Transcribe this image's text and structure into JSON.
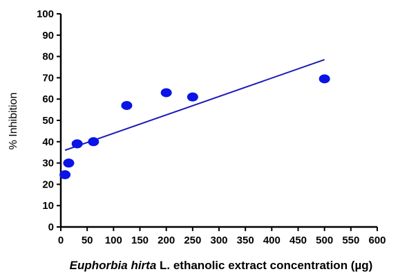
{
  "chart_data": {
    "type": "scatter",
    "xlabel_italic": "Euphorbia hirta",
    "xlabel_rest": " L. ethanolic extract concentration (µg)",
    "ylabel": "% Inhibition",
    "xlim": [
      0,
      600
    ],
    "ylim": [
      0,
      100
    ],
    "x_ticks": [
      0,
      50,
      100,
      150,
      200,
      250,
      300,
      350,
      400,
      450,
      500,
      550,
      600
    ],
    "y_ticks": [
      0,
      10,
      20,
      30,
      40,
      50,
      60,
      70,
      80,
      90,
      100
    ],
    "points": [
      {
        "x": 8,
        "y": 24.5
      },
      {
        "x": 15,
        "y": 30
      },
      {
        "x": 31,
        "y": 39
      },
      {
        "x": 62,
        "y": 40
      },
      {
        "x": 125,
        "y": 57
      },
      {
        "x": 200,
        "y": 63
      },
      {
        "x": 250,
        "y": 61
      },
      {
        "x": 500,
        "y": 69.5
      }
    ],
    "trendline": {
      "x": [
        8,
        500
      ],
      "y": [
        36,
        78.5
      ]
    },
    "colors": {
      "points": "#0a14e6",
      "line": "#1a1ab8",
      "axes": "#000000"
    },
    "grid": false,
    "legend": "none"
  }
}
